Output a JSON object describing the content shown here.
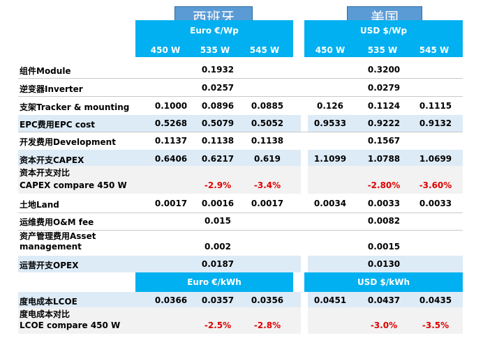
{
  "regions": {
    "spain": "西班牙",
    "usa": "美国"
  },
  "units": {
    "euro_wp": "Euro €/Wp",
    "usd_wp": "USD $/Wp",
    "euro_kwh": "Euro €/kWh",
    "usd_kwh": "USD $/kWh"
  },
  "watts": [
    "450 W",
    "535 W",
    "545 W"
  ],
  "rows": {
    "module": {
      "label": "组件Module",
      "spain": [
        "",
        "0.1932",
        ""
      ],
      "usa": [
        "",
        "0.3200",
        ""
      ]
    },
    "inverter": {
      "label": "逆变器Inverter",
      "spain": [
        "",
        "0.0257",
        ""
      ],
      "usa": [
        "",
        "0.0279",
        ""
      ]
    },
    "tracker": {
      "label": "支架Tracker & mounting",
      "spain": [
        "0.1000",
        "0.0896",
        "0.0885"
      ],
      "usa": [
        "0.126",
        "0.1124",
        "0.1115"
      ]
    },
    "epc": {
      "label": "EPC费用EPC cost",
      "spain": [
        "0.5268",
        "0.5079",
        "0.5052"
      ],
      "usa": [
        "0.9533",
        "0.9222",
        "0.9132"
      ]
    },
    "development": {
      "label": "开发费用Development",
      "spain": [
        "0.1137",
        "0.1138",
        "0.1138"
      ],
      "usa": [
        "",
        "0.1567",
        ""
      ]
    },
    "capex": {
      "label": "资本开支CAPEX",
      "spain": [
        "0.6406",
        "0.6217",
        "0.619"
      ],
      "usa": [
        "1.1099",
        "1.0788",
        "1.0699"
      ]
    },
    "capex_cmp": {
      "label1": "资本开支对比",
      "label2": "CAPEX compare 450 W",
      "spain": [
        "",
        "-2.9%",
        "-3.4%"
      ],
      "usa": [
        "",
        "-2.80%",
        "-3.60%"
      ]
    },
    "land": {
      "label": "土地Land",
      "spain": [
        "0.0017",
        "0.0016",
        "0.0017"
      ],
      "usa": [
        "0.0034",
        "0.0033",
        "0.0033"
      ]
    },
    "om": {
      "label": "运维费用O&M fee",
      "spain": [
        "",
        "0.015",
        ""
      ],
      "usa": [
        "",
        "0.0082",
        ""
      ]
    },
    "asset": {
      "label1": "资产管理费用Asset",
      "label2": "management",
      "spain": [
        "",
        "0.002",
        ""
      ],
      "usa": [
        "",
        "0.0015",
        ""
      ]
    },
    "opex": {
      "label": "运营开支OPEX",
      "spain": [
        "",
        "0.0187",
        ""
      ],
      "usa": [
        "",
        "0.0130",
        ""
      ]
    },
    "lcoe": {
      "label": "度电成本LCOE",
      "spain": [
        "0.0366",
        "0.0357",
        "0.0356"
      ],
      "usa": [
        "0.0451",
        "0.0437",
        "0.0435"
      ]
    },
    "lcoe_cmp": {
      "label1": "度电成本对比",
      "label2": "LCOE compare 450 W",
      "spain": [
        "",
        "-2.5%",
        "-2.8%"
      ],
      "usa": [
        "",
        "-3.0%",
        "-3.5%"
      ]
    }
  },
  "colors": {
    "header": "#00b0f0",
    "region": "#5b9bd5",
    "negative": "#e00000",
    "row_blue": "#ddebf7",
    "row_gray": "#f2f2f2"
  }
}
